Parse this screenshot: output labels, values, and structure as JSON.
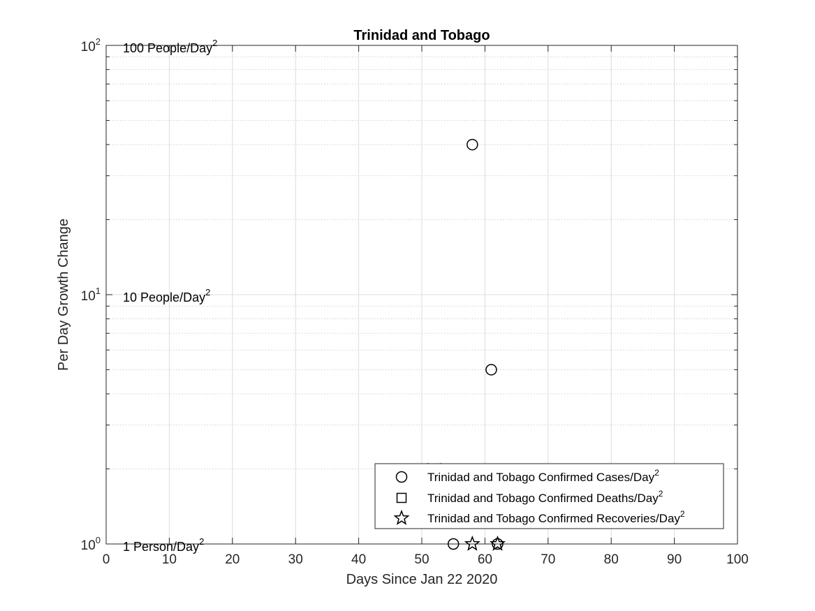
{
  "chart_data": {
    "type": "scatter",
    "title": "Trinidad and Tobago",
    "xlabel": "Days Since Jan 22 2020",
    "ylabel": "Per Day Growth Change",
    "xlim": [
      0,
      100
    ],
    "ylim": [
      1,
      100
    ],
    "yscale": "log",
    "grid": true,
    "xticks": [
      "0",
      "10",
      "20",
      "30",
      "40",
      "50",
      "60",
      "70",
      "80",
      "90",
      "100"
    ],
    "yticks": [
      {
        "value": 1,
        "base": "10",
        "exp": "0"
      },
      {
        "value": 10,
        "base": "10",
        "exp": "1"
      },
      {
        "value": 100,
        "base": "10",
        "exp": "2"
      }
    ],
    "reference_labels": [
      {
        "y": 100,
        "text": "100 People/Day",
        "sup": "2"
      },
      {
        "y": 10,
        "text": "10 People/Day",
        "sup": "2"
      },
      {
        "y": 1,
        "text": "1 Person/Day",
        "sup": "2"
      }
    ],
    "legend_position": "bottom-right",
    "series": [
      {
        "name": "Trinidad and Tobago Confirmed Cases/Day",
        "name_sup": "2",
        "marker": "circle",
        "points": [
          [
            51,
            2
          ],
          [
            53,
            2
          ],
          [
            55,
            1
          ],
          [
            58,
            40
          ],
          [
            61,
            5
          ],
          [
            62,
            1
          ]
        ]
      },
      {
        "name": "Trinidad and Tobago Confirmed Deaths/Day",
        "name_sup": "2",
        "marker": "square",
        "points": []
      },
      {
        "name": "Trinidad and Tobago Confirmed Recoveries/Day",
        "name_sup": "2",
        "marker": "star",
        "points": [
          [
            58,
            1
          ],
          [
            62,
            1
          ]
        ]
      }
    ]
  }
}
